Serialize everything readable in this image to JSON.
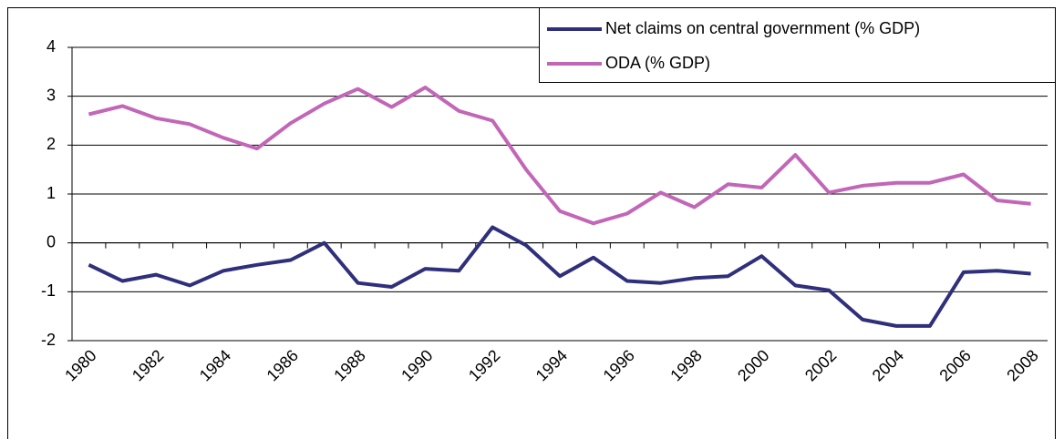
{
  "chart_data": {
    "type": "line",
    "categories": [
      "1980",
      null,
      "1982",
      null,
      "1984",
      null,
      "1986",
      null,
      "1988",
      null,
      "1990",
      null,
      "1992",
      null,
      "1994",
      null,
      "1996",
      null,
      "1998",
      null,
      "2000",
      null,
      "2002",
      null,
      "2004",
      null,
      "2006",
      null,
      "2008"
    ],
    "series": [
      {
        "name": "Net claims on central government (% GDP)",
        "color": "#2f2f7c",
        "values": [
          -0.45,
          -0.78,
          -0.65,
          -0.87,
          -0.57,
          -0.45,
          -0.35,
          0.0,
          -0.82,
          -0.9,
          -0.53,
          -0.57,
          0.32,
          -0.05,
          -0.68,
          -0.3,
          -0.78,
          -0.82,
          -0.72,
          -0.68,
          -0.27,
          -0.87,
          -0.97,
          -1.57,
          -1.7,
          -1.7,
          -0.6,
          -0.57,
          -0.63
        ]
      },
      {
        "name": "ODA (% GDP)",
        "color": "#c266b8",
        "values": [
          2.63,
          2.8,
          2.55,
          2.43,
          2.15,
          1.93,
          2.45,
          2.85,
          3.15,
          2.78,
          3.18,
          2.7,
          2.5,
          1.5,
          0.65,
          0.4,
          0.6,
          1.03,
          0.73,
          1.2,
          1.13,
          1.8,
          1.03,
          1.17,
          1.23,
          1.23,
          1.4,
          0.87,
          0.8
        ]
      }
    ],
    "ylim": [
      -2,
      4
    ],
    "yticks": [
      -2,
      -1,
      0,
      1,
      2,
      3,
      4
    ],
    "grid": true,
    "legend": "top-right"
  }
}
